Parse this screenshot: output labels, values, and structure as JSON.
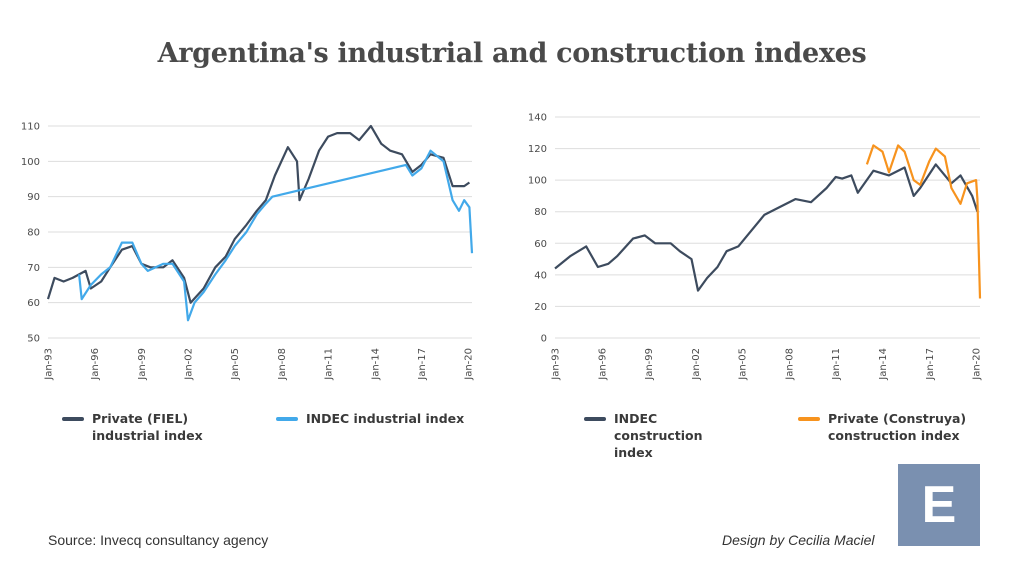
{
  "title": "Argentina's industrial and construction indexes",
  "source": "Source: Invecq consultancy agency",
  "credit": "Design by Cecilia Maciel",
  "logo_letter": "E",
  "colors": {
    "dark": "#3d4b5e",
    "blue": "#42a9ea",
    "orange": "#f7931e",
    "grid": "#dddddd"
  },
  "chart_data": [
    {
      "type": "line",
      "x_tick_labels": [
        "Jan-93",
        "Jan-96",
        "Jan-99",
        "Jan-02",
        "Jan-05",
        "Jan-08",
        "Jan-11",
        "Jan-14",
        "Jan-17",
        "Jan-20"
      ],
      "x_range": [
        "1993-01",
        "2020-04"
      ],
      "ylim": [
        50,
        110
      ],
      "yticks": [
        50,
        60,
        70,
        80,
        90,
        100,
        110
      ],
      "grid": true,
      "legend_position": "bottom",
      "series": [
        {
          "name": "Private (FIEL) industrial index",
          "color": "#3d4b5e",
          "points": [
            [
              "1993-01",
              61
            ],
            [
              "1993-06",
              67
            ],
            [
              "1994-01",
              66
            ],
            [
              "1994-08",
              67
            ],
            [
              "1995-06",
              69
            ],
            [
              "1995-10",
              64
            ],
            [
              "1996-06",
              66
            ],
            [
              "1997-01",
              70
            ],
            [
              "1997-10",
              75
            ],
            [
              "1998-06",
              76
            ],
            [
              "1999-01",
              71
            ],
            [
              "1999-08",
              70
            ],
            [
              "2000-06",
              70
            ],
            [
              "2001-01",
              72
            ],
            [
              "2001-10",
              67
            ],
            [
              "2002-03",
              60
            ],
            [
              "2003-01",
              64
            ],
            [
              "2003-10",
              70
            ],
            [
              "2004-06",
              73
            ],
            [
              "2005-01",
              78
            ],
            [
              "2005-10",
              82
            ],
            [
              "2006-06",
              86
            ],
            [
              "2007-01",
              89
            ],
            [
              "2007-08",
              96
            ],
            [
              "2008-06",
              104
            ],
            [
              "2009-01",
              100
            ],
            [
              "2009-03",
              89
            ],
            [
              "2009-10",
              95
            ],
            [
              "2010-06",
              103
            ],
            [
              "2011-01",
              107
            ],
            [
              "2011-08",
              108
            ],
            [
              "2012-06",
              108
            ],
            [
              "2013-01",
              106
            ],
            [
              "2013-10",
              110
            ],
            [
              "2014-06",
              105
            ],
            [
              "2015-01",
              103
            ],
            [
              "2015-10",
              102
            ],
            [
              "2016-06",
              97
            ],
            [
              "2017-01",
              99
            ],
            [
              "2017-08",
              102
            ],
            [
              "2018-06",
              101
            ],
            [
              "2019-01",
              93
            ],
            [
              "2019-10",
              93
            ],
            [
              "2020-02",
              94
            ]
          ]
        },
        {
          "name": "INDEC industrial index",
          "color": "#42a9ea",
          "points": [
            [
              "1995-01",
              68
            ],
            [
              "1995-03",
              61
            ],
            [
              "1995-10",
              65
            ],
            [
              "1996-06",
              68
            ],
            [
              "1997-01",
              70
            ],
            [
              "1997-10",
              77
            ],
            [
              "1998-06",
              77
            ],
            [
              "1999-01",
              71
            ],
            [
              "1999-06",
              69
            ],
            [
              "2000-06",
              71
            ],
            [
              "2001-01",
              71
            ],
            [
              "2001-10",
              66
            ],
            [
              "2002-01",
              55
            ],
            [
              "2002-06",
              60
            ],
            [
              "2003-01",
              63
            ],
            [
              "2003-10",
              68
            ],
            [
              "2004-06",
              72
            ],
            [
              "2005-01",
              76
            ],
            [
              "2005-10",
              80
            ],
            [
              "2006-06",
              85
            ],
            [
              "2007-01",
              88
            ],
            [
              "2007-06",
              90
            ],
            [
              "2016-01",
              99
            ],
            [
              "2016-06",
              96
            ],
            [
              "2017-01",
              98
            ],
            [
              "2017-08",
              103
            ],
            [
              "2018-06",
              100
            ],
            [
              "2019-01",
              89
            ],
            [
              "2019-06",
              86
            ],
            [
              "2019-10",
              89
            ],
            [
              "2020-02",
              87
            ],
            [
              "2020-04",
              74
            ]
          ]
        }
      ]
    },
    {
      "type": "line",
      "x_tick_labels": [
        "Jan-93",
        "Jan-96",
        "Jan-99",
        "Jan-02",
        "Jan-05",
        "Jan-08",
        "Jan-11",
        "Jan-14",
        "Jan-17",
        "Jan-20"
      ],
      "x_range": [
        "1993-01",
        "2020-04"
      ],
      "ylim": [
        0,
        140
      ],
      "yticks": [
        0,
        20,
        40,
        60,
        80,
        100,
        120,
        140
      ],
      "grid": true,
      "legend_position": "bottom",
      "series": [
        {
          "name": "INDEC construction index",
          "color": "#3d4b5e",
          "points": [
            [
              "1993-01",
              44
            ],
            [
              "1994-01",
              52
            ],
            [
              "1995-01",
              58
            ],
            [
              "1995-10",
              45
            ],
            [
              "1996-06",
              47
            ],
            [
              "1997-01",
              52
            ],
            [
              "1998-01",
              63
            ],
            [
              "1998-10",
              65
            ],
            [
              "1999-06",
              60
            ],
            [
              "2000-06",
              60
            ],
            [
              "2001-01",
              55
            ],
            [
              "2001-10",
              50
            ],
            [
              "2002-03",
              30
            ],
            [
              "2002-10",
              38
            ],
            [
              "2003-06",
              45
            ],
            [
              "2004-01",
              55
            ],
            [
              "2004-10",
              58
            ],
            [
              "2005-06",
              66
            ],
            [
              "2006-06",
              78
            ],
            [
              "2007-06",
              83
            ],
            [
              "2008-06",
              88
            ],
            [
              "2009-06",
              86
            ],
            [
              "2010-06",
              95
            ],
            [
              "2011-01",
              102
            ],
            [
              "2011-06",
              101
            ],
            [
              "2012-01",
              103
            ],
            [
              "2012-06",
              92
            ],
            [
              "2013-06",
              106
            ],
            [
              "2014-06",
              103
            ],
            [
              "2015-06",
              108
            ],
            [
              "2016-01",
              90
            ],
            [
              "2016-06",
              95
            ],
            [
              "2017-06",
              110
            ],
            [
              "2018-06",
              98
            ],
            [
              "2019-01",
              103
            ],
            [
              "2019-10",
              90
            ],
            [
              "2020-02",
              80
            ]
          ]
        },
        {
          "name": "Private (Construya) construction index",
          "color": "#f7931e",
          "points": [
            [
              "2013-01",
              110
            ],
            [
              "2013-06",
              122
            ],
            [
              "2014-01",
              118
            ],
            [
              "2014-06",
              105
            ],
            [
              "2015-01",
              122
            ],
            [
              "2015-06",
              118
            ],
            [
              "2016-01",
              100
            ],
            [
              "2016-06",
              97
            ],
            [
              "2017-01",
              112
            ],
            [
              "2017-06",
              120
            ],
            [
              "2018-01",
              115
            ],
            [
              "2018-06",
              95
            ],
            [
              "2019-01",
              85
            ],
            [
              "2019-06",
              98
            ],
            [
              "2020-01",
              100
            ],
            [
              "2020-02",
              88
            ],
            [
              "2020-04",
              25
            ]
          ]
        }
      ]
    }
  ],
  "legends": {
    "left": [
      {
        "label": "Private (FIEL) industrial index",
        "color": "#3d4b5e"
      },
      {
        "label": "INDEC industrial index",
        "color": "#42a9ea"
      }
    ],
    "right": [
      {
        "label": "INDEC construction index",
        "color": "#3d4b5e"
      },
      {
        "label": "Private (Construya) construction index",
        "color": "#f7931e"
      }
    ]
  }
}
